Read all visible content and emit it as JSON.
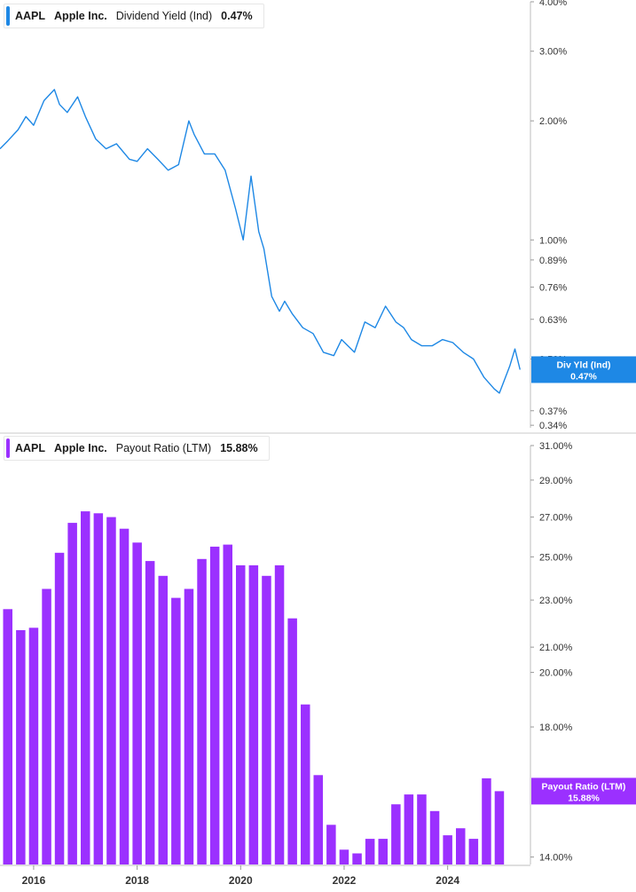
{
  "chart_data": [
    {
      "type": "line",
      "ticker": "AAPL",
      "company": "Apple Inc.",
      "metric": "Dividend Yield (Ind)",
      "current_value": "0.47%",
      "tag_label": "Div Yld (Ind)",
      "color": "#1e88e5",
      "y_scale": "log",
      "y_ticks": [
        "4.00%",
        "3.00%",
        "2.00%",
        "1.00%",
        "0.89%",
        "0.76%",
        "0.63%",
        "0.50%",
        "0.37%",
        "0.34%"
      ],
      "y_tick_values": [
        4.0,
        3.0,
        2.0,
        1.0,
        0.89,
        0.76,
        0.63,
        0.5,
        0.37,
        0.34
      ],
      "ylim": [
        0.335,
        4.0
      ],
      "x": [
        2015.35,
        2015.5,
        2015.7,
        2015.85,
        2016.0,
        2016.2,
        2016.4,
        2016.5,
        2016.65,
        2016.85,
        2017.0,
        2017.2,
        2017.4,
        2017.6,
        2017.85,
        2018.0,
        2018.2,
        2018.4,
        2018.6,
        2018.8,
        2019.0,
        2019.1,
        2019.3,
        2019.5,
        2019.7,
        2019.9,
        2020.05,
        2020.2,
        2020.35,
        2020.45,
        2020.6,
        2020.75,
        2020.85,
        2021.0,
        2021.2,
        2021.4,
        2021.6,
        2021.8,
        2021.95,
        2022.2,
        2022.4,
        2022.6,
        2022.8,
        2023.0,
        2023.15,
        2023.3,
        2023.5,
        2023.7,
        2023.9,
        2024.1,
        2024.3,
        2024.5,
        2024.7,
        2024.9,
        2025.0,
        2025.2,
        2025.3,
        2025.4
      ],
      "y": [
        1.7,
        1.78,
        1.9,
        2.05,
        1.95,
        2.25,
        2.4,
        2.2,
        2.1,
        2.3,
        2.05,
        1.8,
        1.7,
        1.75,
        1.6,
        1.58,
        1.7,
        1.6,
        1.5,
        1.55,
        2.0,
        1.85,
        1.65,
        1.65,
        1.5,
        1.2,
        1.0,
        1.45,
        1.05,
        0.95,
        0.72,
        0.66,
        0.7,
        0.65,
        0.6,
        0.58,
        0.52,
        0.51,
        0.56,
        0.52,
        0.62,
        0.6,
        0.68,
        0.62,
        0.6,
        0.56,
        0.54,
        0.54,
        0.56,
        0.55,
        0.52,
        0.5,
        0.45,
        0.42,
        0.41,
        0.48,
        0.53,
        0.47
      ]
    },
    {
      "type": "bar",
      "ticker": "AAPL",
      "company": "Apple Inc.",
      "metric": "Payout Ratio (LTM)",
      "current_value": "15.88%",
      "tag_label": "Payout Ratio (LTM)",
      "color": "#9b30ff",
      "y_scale": "log",
      "y_ticks": [
        "31.00%",
        "29.00%",
        "27.00%",
        "25.00%",
        "23.00%",
        "21.00%",
        "20.00%",
        "18.00%",
        "14.00%"
      ],
      "y_tick_values": [
        31.0,
        29.0,
        27.0,
        25.0,
        23.0,
        21.0,
        20.0,
        18.0,
        14.0
      ],
      "ylim": [
        13.8,
        31.0
      ],
      "x": [
        2015.5,
        2015.75,
        2016.0,
        2016.25,
        2016.5,
        2016.75,
        2017.0,
        2017.25,
        2017.5,
        2017.75,
        2018.0,
        2018.25,
        2018.5,
        2018.75,
        2019.0,
        2019.25,
        2019.5,
        2019.75,
        2020.0,
        2020.25,
        2020.5,
        2020.75,
        2021.0,
        2021.25,
        2021.5,
        2021.75,
        2022.0,
        2022.25,
        2022.5,
        2022.75,
        2023.0,
        2023.25,
        2023.5,
        2023.75,
        2024.0,
        2024.25,
        2024.5,
        2024.75,
        2025.0
      ],
      "values": [
        22.6,
        21.7,
        21.8,
        23.5,
        25.2,
        26.7,
        27.3,
        27.2,
        27.0,
        26.4,
        25.7,
        24.8,
        24.1,
        23.1,
        23.5,
        24.9,
        25.5,
        25.6,
        24.6,
        24.6,
        24.1,
        24.6,
        22.2,
        18.8,
        16.4,
        14.9,
        14.2,
        14.1,
        14.5,
        14.5,
        15.5,
        15.8,
        15.8,
        15.3,
        14.6,
        14.8,
        14.5,
        16.3,
        15.9
      ]
    }
  ],
  "x_axis": {
    "ticks": [
      "2016",
      "2018",
      "2020",
      "2022",
      "2024"
    ],
    "tick_values": [
      2016,
      2018,
      2020,
      2022,
      2024
    ],
    "xlim": [
      2015.35,
      2025.6
    ]
  },
  "grid": false
}
